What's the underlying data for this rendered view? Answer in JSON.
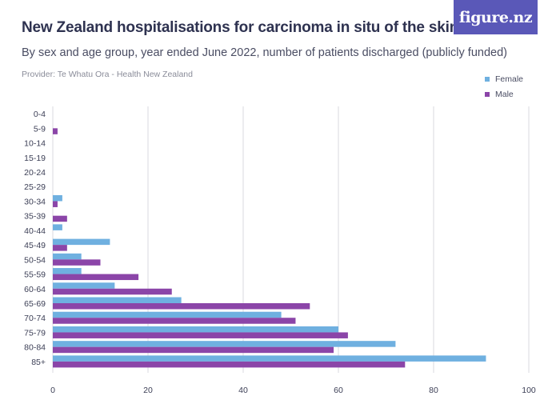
{
  "header": {
    "title": "New Zealand hospitalisations for carcinoma in situ of the skin",
    "subtitle": "By sex and age group, year ended June 2022, number of patients discharged (publicly funded)",
    "provider": "Provider: Te Whatu Ora - Health New Zealand",
    "logo_text": "figure.nz"
  },
  "colors": {
    "female": "#6fb0e0",
    "male": "#8b45a8",
    "grid": "#d9dadf",
    "logo_bg": "#5a58b8"
  },
  "chart_data": {
    "type": "bar",
    "orientation": "horizontal",
    "categories": [
      "0-4",
      "5-9",
      "10-14",
      "15-19",
      "20-24",
      "25-29",
      "30-34",
      "35-39",
      "40-44",
      "45-49",
      "50-54",
      "55-59",
      "60-64",
      "65-69",
      "70-74",
      "75-79",
      "80-84",
      "85+"
    ],
    "series": [
      {
        "name": "Female",
        "values": [
          0,
          0,
          0,
          0,
          0,
          0,
          2,
          0,
          2,
          12,
          6,
          6,
          13,
          27,
          48,
          60,
          72,
          91
        ]
      },
      {
        "name": "Male",
        "values": [
          0,
          1,
          0,
          0,
          0,
          0,
          1,
          3,
          0,
          3,
          10,
          18,
          25,
          54,
          51,
          62,
          59,
          74
        ]
      }
    ],
    "xlim": [
      0,
      100
    ],
    "xticks": [
      0,
      20,
      40,
      60,
      80,
      100
    ],
    "grid": true,
    "legend_position": "top-right"
  }
}
